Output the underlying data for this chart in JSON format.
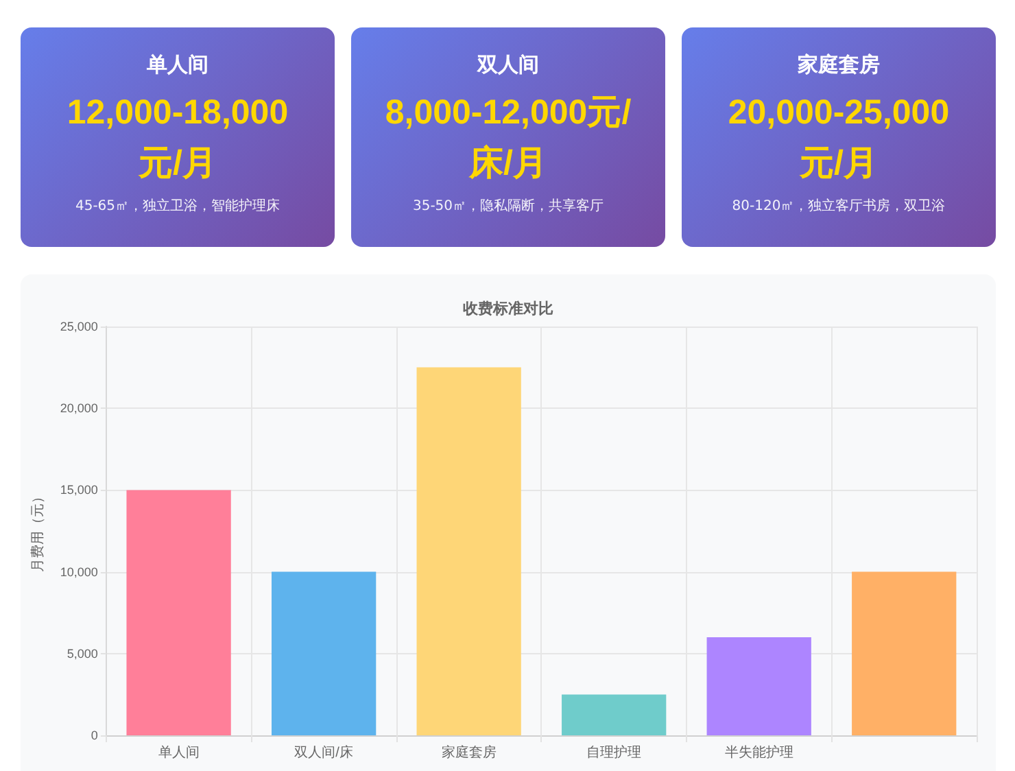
{
  "chart_data": [
    {
      "type": "other",
      "title": "单人间",
      "annotations": [
        "12,000-18,000元/月",
        "45-65㎡，独立卫浴，智能护理床"
      ]
    },
    {
      "type": "other",
      "title": "双人间",
      "annotations": [
        "8,000-12,000元/床/月",
        "35-50㎡，隐私隔断，共享客厅"
      ]
    },
    {
      "type": "other",
      "title": "家庭套房",
      "annotations": [
        "20,000-25,000元/月",
        "80-120㎡，独立客厅书房，双卫浴"
      ]
    },
    {
      "type": "bar",
      "title": "收费标准对比",
      "ylabel": "月费用（元）",
      "categories": [
        "单人间",
        "双人间/床",
        "家庭套房",
        "自理护理",
        "半失能护理",
        null
      ],
      "values": [
        15000,
        10000,
        22500,
        2500,
        6000,
        10000
      ],
      "colors": [
        "#ff7f99",
        "#5eb3ed",
        "#fed677",
        "#6fcccb",
        "#ad85ff",
        "#ffb066"
      ],
      "ylim": [
        0,
        25000
      ],
      "yticks": [
        0,
        {
          "value": 5000,
          "label": "5,000"
        },
        {
          "value": 10000,
          "label": "10,000"
        },
        {
          "value": 15000,
          "label": "15,000"
        },
        {
          "value": 20000,
          "label": "20,000"
        },
        {
          "value": 25000,
          "label": "25,000"
        }
      ],
      "grid": true
    }
  ]
}
